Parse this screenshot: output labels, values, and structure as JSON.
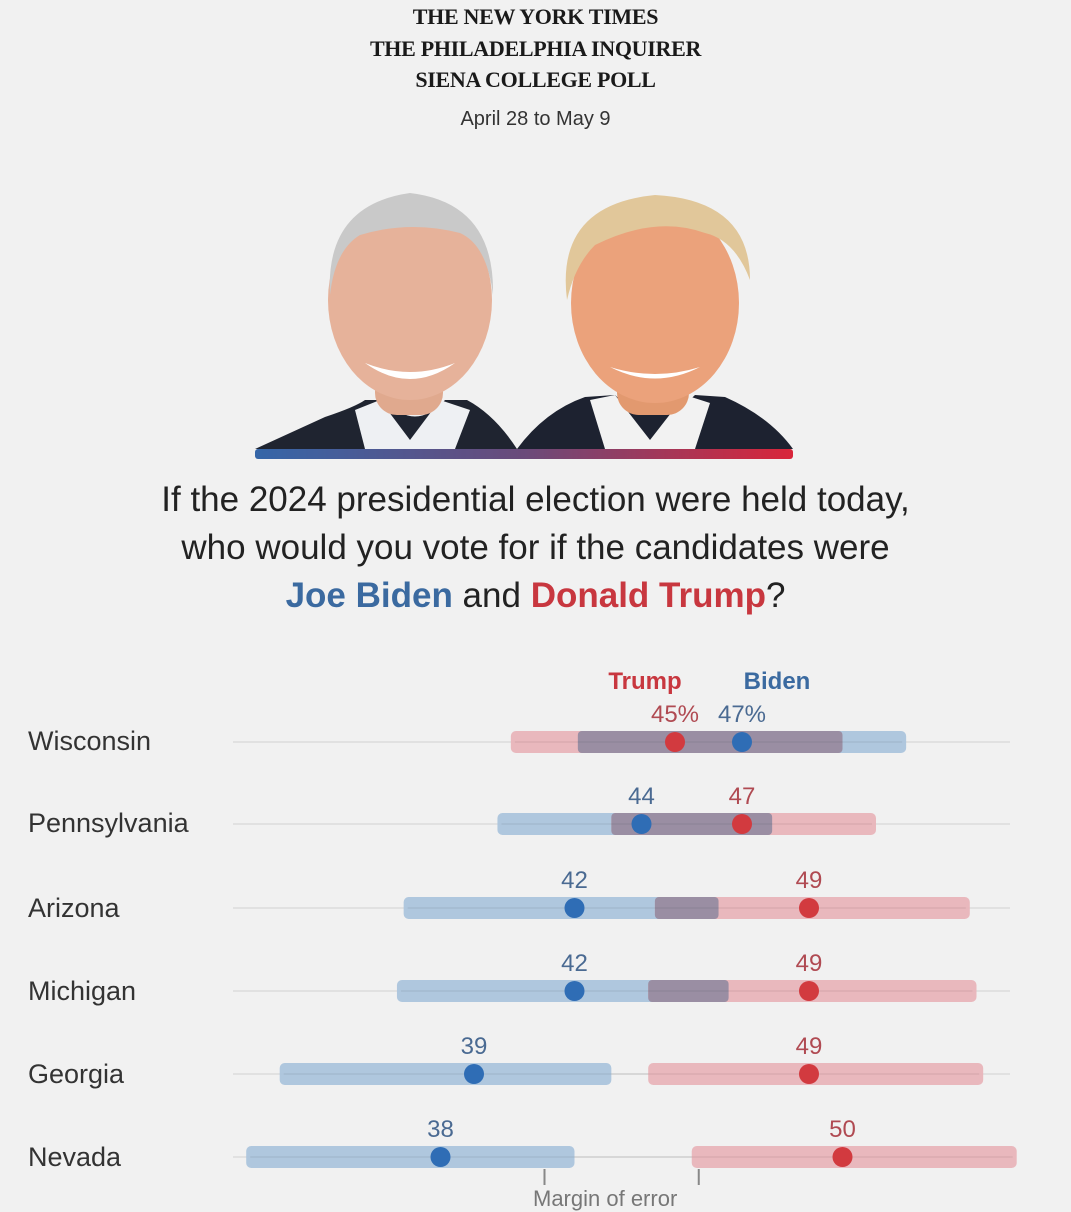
{
  "masthead": {
    "line1": "THE NEW YORK TIMES",
    "line2": "THE PHILADELPHIA INQUIRER",
    "line3": "SIENA COLLEGE POLL",
    "dates": "April 28 to May 9"
  },
  "photos": {
    "left": "Joe Biden portrait",
    "right": "Donald Trump portrait"
  },
  "question": {
    "line1": "If the 2024 presidential election were held today,",
    "line2": "who would you vote for if the candidates were",
    "biden": "Joe Biden",
    "and": " and ",
    "trump": "Donald Trump",
    "end": "?"
  },
  "colors": {
    "biden": "#2f6db5",
    "trump": "#d23a3f",
    "biden_bar": "#a9c3dc",
    "trump_bar": "#e8b3b9",
    "overlap_bar": "#9a8ea3"
  },
  "chart_data": {
    "type": "dot-range",
    "title": "If the 2024 presidential election were held today, who would you vote for if the candidates were Joe Biden and Donald Trump?",
    "legend": [
      {
        "name": "Trump",
        "color": "#c8373f"
      },
      {
        "name": "Biden",
        "color": "#3b6aa0"
      }
    ],
    "legend_placement": "top-center",
    "unit": "%",
    "xlim": [
      31,
      56
    ],
    "categories": [
      "Wisconsin",
      "Pennsylvania",
      "Arizona",
      "Michigan",
      "Georgia",
      "Nevada"
    ],
    "series": [
      {
        "name": "Biden",
        "values": [
          47,
          44,
          42,
          42,
          39,
          38
        ],
        "ranges": [
          [
            42.1,
            51.9
          ],
          [
            39.7,
            47.9
          ],
          [
            36.9,
            46.3
          ],
          [
            36.7,
            46.6
          ],
          [
            33.2,
            43.1
          ],
          [
            32.2,
            42.0
          ]
        ]
      },
      {
        "name": "Trump",
        "values": [
          45,
          47,
          49,
          49,
          49,
          50
        ],
        "ranges": [
          [
            40.1,
            50.0
          ],
          [
            43.1,
            51.0
          ],
          [
            44.4,
            53.8
          ],
          [
            44.2,
            54.0
          ],
          [
            44.2,
            54.2
          ],
          [
            45.5,
            55.2
          ]
        ]
      }
    ],
    "value_labels": [
      {
        "biden": "47%",
        "trump": "45%"
      },
      {
        "biden": "44",
        "trump": "47"
      },
      {
        "biden": "42",
        "trump": "49"
      },
      {
        "biden": "42",
        "trump": "49"
      },
      {
        "biden": "39",
        "trump": "49"
      },
      {
        "biden": "38",
        "trump": "50"
      }
    ],
    "annotation": "Margin of error",
    "annotation_range_state": "Nevada",
    "annotation_range": [
      42.0,
      45.5
    ]
  }
}
